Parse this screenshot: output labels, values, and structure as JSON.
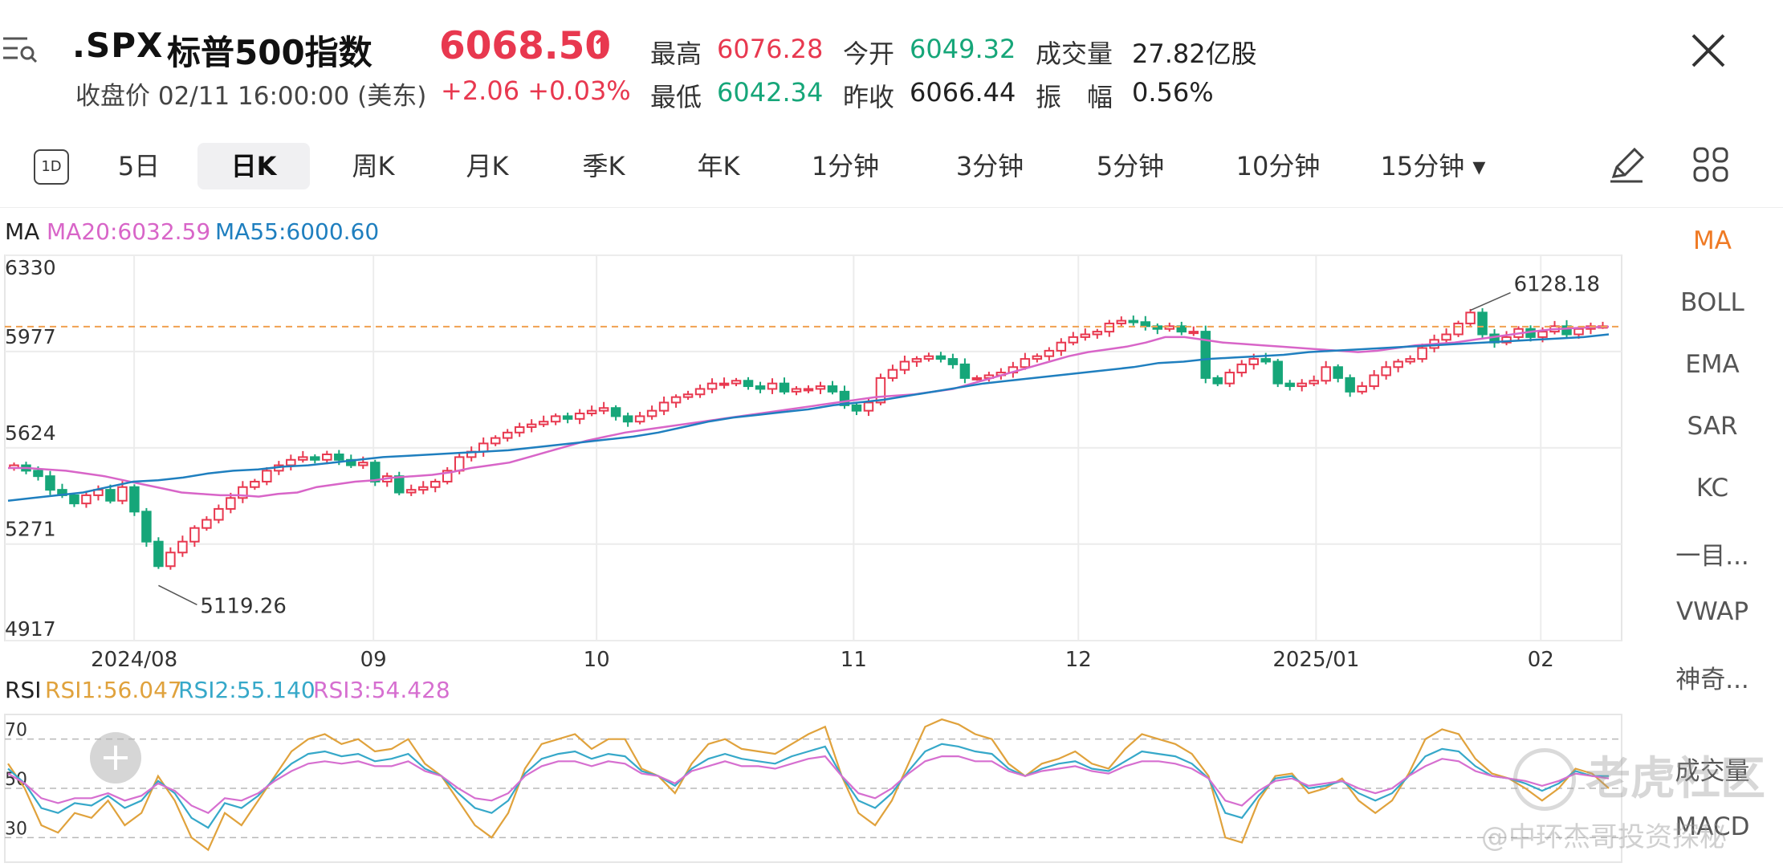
{
  "header": {
    "ticker": ".SPX",
    "name": "标普500指数",
    "subtitle": "收盘价 02/11 16:00:00 (美东)",
    "price": "6068.50",
    "price_arrow": "↑",
    "change": "+2.06 +0.03%",
    "stats": [
      {
        "label": "最高",
        "value": "6076.28",
        "color": "#e8384f"
      },
      {
        "label": "今开",
        "value": "6049.32",
        "color": "#16a679"
      },
      {
        "label": "成交量",
        "value": "27.82亿股",
        "color": "#222"
      },
      {
        "label": "最低",
        "value": "6042.34",
        "color": "#16a679"
      },
      {
        "label": "昨收",
        "value": "6066.44",
        "color": "#222"
      },
      {
        "label": "振　幅",
        "value": "0.56%",
        "color": "#222"
      }
    ]
  },
  "periods": {
    "d1_icon": "1D",
    "items": [
      "5日",
      "日K",
      "周K",
      "月K",
      "季K",
      "年K",
      "1分钟",
      "3分钟",
      "5分钟",
      "10分钟",
      "15分钟 ▾"
    ],
    "active": "日K"
  },
  "right_menu": {
    "items": [
      "MA",
      "BOLL",
      "EMA",
      "SAR",
      "KC",
      "一目...",
      "VWAP",
      "神奇...",
      "成交量",
      "MACD"
    ],
    "active": "MA"
  },
  "ma_legend": {
    "prefix": "MA",
    "ma20": "MA20:6032.59",
    "ma55": "MA55:6000.60"
  },
  "rsi_legend": {
    "prefix": "RSI",
    "rsi1": "RSI1:56.047",
    "rsi2": "RSI2:55.140",
    "rsi3": "RSI3:54.428"
  },
  "colors": {
    "up": "#e8384f",
    "down": "#16a679",
    "ma20": "#d865c8",
    "ma55": "#1f7fbf",
    "rsi1": "#e0a23c",
    "rsi2": "#36a8c9",
    "rsi3": "#d66fd0",
    "ref_line": "#f0a050",
    "accent": "#ef7a24"
  },
  "watermark": {
    "brand": "老虎社区",
    "author": "@中环杰哥投资探秘"
  },
  "chart_data": [
    {
      "type": "candlestick",
      "title": "",
      "y_ticks": [
        6330,
        5977,
        5624,
        5271,
        4917
      ],
      "ylim": [
        4917,
        6330
      ],
      "x_ticks": [
        "2024/08",
        "09",
        "10",
        "11",
        "12",
        "2025/01",
        "02"
      ],
      "annotations": [
        {
          "text": "6128.18",
          "value": 6128.18
        },
        {
          "text": "5119.26",
          "value": 5119.26
        }
      ],
      "reference_line": 6068.5,
      "series": [
        {
          "name": "price",
          "closes": [
            5560,
            5540,
            5520,
            5470,
            5450,
            5420,
            5450,
            5470,
            5430,
            5480,
            5390,
            5280,
            5190,
            5240,
            5280,
            5330,
            5360,
            5400,
            5440,
            5480,
            5500,
            5540,
            5560,
            5580,
            5590,
            5580,
            5600,
            5580,
            5560,
            5570,
            5500,
            5520,
            5460,
            5470,
            5480,
            5500,
            5540,
            5590,
            5610,
            5640,
            5660,
            5680,
            5700,
            5710,
            5720,
            5740,
            5730,
            5750,
            5760,
            5770,
            5740,
            5720,
            5740,
            5760,
            5790,
            5810,
            5820,
            5840,
            5860,
            5860,
            5870,
            5850,
            5840,
            5860,
            5830,
            5840,
            5840,
            5850,
            5830,
            5780,
            5760,
            5790,
            5880,
            5910,
            5940,
            5950,
            5960,
            5950,
            5930,
            5880,
            5880,
            5890,
            5900,
            5920,
            5950,
            5960,
            5980,
            6010,
            6030,
            6040,
            6050,
            6080,
            6090,
            6085,
            6070,
            6060,
            6070,
            6050,
            6050,
            5880,
            5860,
            5900,
            5930,
            5950,
            5940,
            5860,
            5850,
            5860,
            5870,
            5920,
            5880,
            5830,
            5850,
            5890,
            5920,
            5940,
            5950,
            5990,
            6020,
            6040,
            6080,
            6120,
            6040,
            6010,
            6030,
            6060,
            6030,
            6050,
            6070,
            6040,
            6060,
            6070,
            6070
          ]
        },
        {
          "name": "MA20",
          "values": [
            5550,
            5550,
            5545,
            5540,
            5530,
            5520,
            5505,
            5490,
            5475,
            5460,
            5455,
            5450,
            5450,
            5445,
            5455,
            5460,
            5480,
            5490,
            5500,
            5505,
            5515,
            5520,
            5525,
            5535,
            5550,
            5560,
            5570,
            5590,
            5610,
            5630,
            5650,
            5665,
            5680,
            5690,
            5700,
            5710,
            5720,
            5730,
            5740,
            5750,
            5760,
            5770,
            5780,
            5790,
            5800,
            5810,
            5815,
            5820,
            5830,
            5840,
            5860,
            5880,
            5900,
            5920,
            5940,
            5960,
            5975,
            5985,
            5995,
            6010,
            6030,
            6030,
            6020,
            6010,
            6005,
            6000,
            5995,
            5990,
            5985,
            5980,
            5975,
            5980,
            5990,
            6000,
            6005,
            6010,
            6020,
            6030,
            6040,
            6050,
            6058,
            6062,
            6066,
            6068
          ]
        },
        {
          "name": "MA55",
          "values": [
            5430,
            5440,
            5450,
            5460,
            5480,
            5500,
            5505,
            5515,
            5530,
            5540,
            5545,
            5555,
            5560,
            5570,
            5580,
            5590,
            5595,
            5600,
            5605,
            5610,
            5615,
            5625,
            5635,
            5645,
            5655,
            5665,
            5680,
            5700,
            5720,
            5735,
            5745,
            5755,
            5765,
            5780,
            5790,
            5800,
            5815,
            5830,
            5845,
            5860,
            5870,
            5880,
            5890,
            5900,
            5910,
            5920,
            5935,
            5940,
            5950,
            5955,
            5960,
            5965,
            5975,
            5980,
            5985,
            5990,
            5995,
            6000,
            6005,
            6010,
            6015,
            6020,
            6025,
            6030,
            6040
          ]
        }
      ]
    },
    {
      "type": "line",
      "title": "",
      "y_ticks": [
        70,
        50,
        30
      ],
      "ylim": [
        20,
        80
      ],
      "series": [
        {
          "name": "RSI1",
          "values": [
            60,
            50,
            35,
            32,
            40,
            38,
            45,
            35,
            40,
            55,
            45,
            30,
            25,
            40,
            35,
            45,
            55,
            65,
            70,
            72,
            68,
            70,
            65,
            66,
            70,
            60,
            55,
            45,
            35,
            30,
            40,
            58,
            68,
            70,
            72,
            66,
            70,
            70,
            58,
            55,
            48,
            60,
            68,
            70,
            66,
            65,
            64,
            68,
            72,
            75,
            55,
            40,
            35,
            45,
            60,
            75,
            78,
            76,
            72,
            70,
            60,
            55,
            60,
            62,
            65,
            60,
            58,
            66,
            72,
            70,
            68,
            64,
            55,
            30,
            28,
            45,
            55,
            56,
            48,
            50,
            54,
            45,
            40,
            45,
            56,
            70,
            74,
            72,
            62,
            56,
            54,
            50,
            45,
            50,
            58,
            56,
            50
          ]
        },
        {
          "name": "RSI2",
          "values": [
            58,
            52,
            42,
            40,
            44,
            43,
            47,
            42,
            45,
            53,
            48,
            38,
            34,
            44,
            42,
            47,
            54,
            60,
            64,
            65,
            63,
            64,
            61,
            62,
            64,
            58,
            55,
            48,
            42,
            40,
            45,
            56,
            62,
            64,
            65,
            62,
            64,
            63,
            57,
            55,
            51,
            58,
            62,
            64,
            62,
            61,
            60,
            63,
            65,
            67,
            55,
            45,
            42,
            48,
            57,
            65,
            68,
            67,
            65,
            64,
            58,
            55,
            58,
            60,
            61,
            58,
            57,
            61,
            65,
            64,
            63,
            60,
            54,
            40,
            38,
            47,
            54,
            55,
            50,
            51,
            53,
            48,
            45,
            48,
            55,
            63,
            66,
            65,
            59,
            55,
            54,
            52,
            49,
            52,
            57,
            55,
            55
          ]
        },
        {
          "name": "RSI3",
          "values": [
            56,
            52,
            46,
            44,
            46,
            46,
            48,
            45,
            47,
            52,
            49,
            43,
            40,
            46,
            45,
            48,
            53,
            57,
            60,
            61,
            60,
            61,
            59,
            59,
            61,
            57,
            55,
            50,
            46,
            45,
            48,
            55,
            59,
            61,
            61,
            59,
            61,
            60,
            56,
            55,
            52,
            57,
            59,
            61,
            59,
            59,
            58,
            60,
            62,
            63,
            55,
            48,
            46,
            50,
            56,
            61,
            63,
            63,
            61,
            61,
            57,
            55,
            57,
            58,
            59,
            57,
            56,
            59,
            61,
            61,
            60,
            58,
            54,
            45,
            43,
            49,
            53,
            54,
            51,
            52,
            53,
            50,
            48,
            50,
            55,
            59,
            62,
            61,
            57,
            55,
            54,
            53,
            51,
            53,
            56,
            55,
            54
          ]
        }
      ]
    }
  ]
}
